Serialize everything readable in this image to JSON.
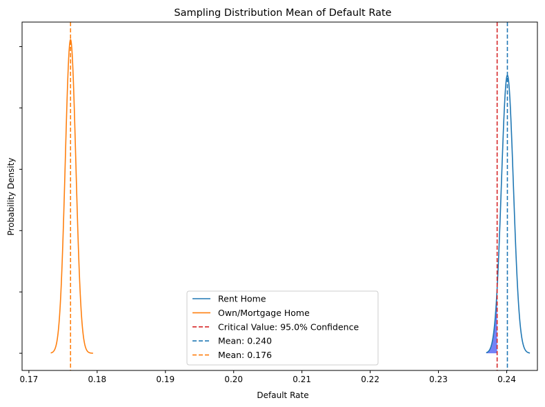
{
  "chart_data": {
    "type": "line",
    "title": "Sampling Distribution Mean of Default Rate",
    "xlabel": "Default Rate",
    "ylabel": "Probability Density",
    "xlim": [
      0.169,
      0.2445
    ],
    "ylim": [
      -28,
      540
    ],
    "x_ticks": [
      0.17,
      0.18,
      0.19,
      0.2,
      0.21,
      0.22,
      0.23,
      0.24
    ],
    "x_tick_labels": [
      "0.17",
      "0.18",
      "0.19",
      "0.20",
      "0.21",
      "0.22",
      "0.23",
      "0.24"
    ],
    "y_ticks": [
      0,
      100,
      200,
      300,
      400,
      500
    ],
    "y_tick_labels_visible": false,
    "grid": false,
    "legend_position": "bottom-center",
    "series": [
      {
        "name": "Rent Home",
        "kind": "normal-density",
        "mean": 0.2401,
        "sd": 0.00088,
        "x_range": [
          0.237,
          0.2434
        ],
        "color": "#1f77b4",
        "style": "solid"
      },
      {
        "name": "Own/Mortgage Home",
        "kind": "normal-density",
        "mean": 0.1761,
        "sd": 0.00078,
        "x_range": [
          0.1732,
          0.1794
        ],
        "color": "#ff7f0e",
        "style": "solid"
      },
      {
        "name": "Critical Value: 95.0% Confidence",
        "kind": "vline",
        "x": 0.2386,
        "color": "#d62728",
        "style": "dashed"
      },
      {
        "name": "Mean:  0.240",
        "kind": "vline",
        "x": 0.2401,
        "color": "#1f77b4",
        "style": "dashed"
      },
      {
        "name": "Mean:  0.176",
        "kind": "vline",
        "x": 0.1761,
        "color": "#ff7f0e",
        "style": "dashed"
      }
    ],
    "shaded_region": {
      "series": "Rent Home",
      "x_from": 0.237,
      "x_to": 0.2386,
      "color": "#5b6cf5"
    }
  }
}
